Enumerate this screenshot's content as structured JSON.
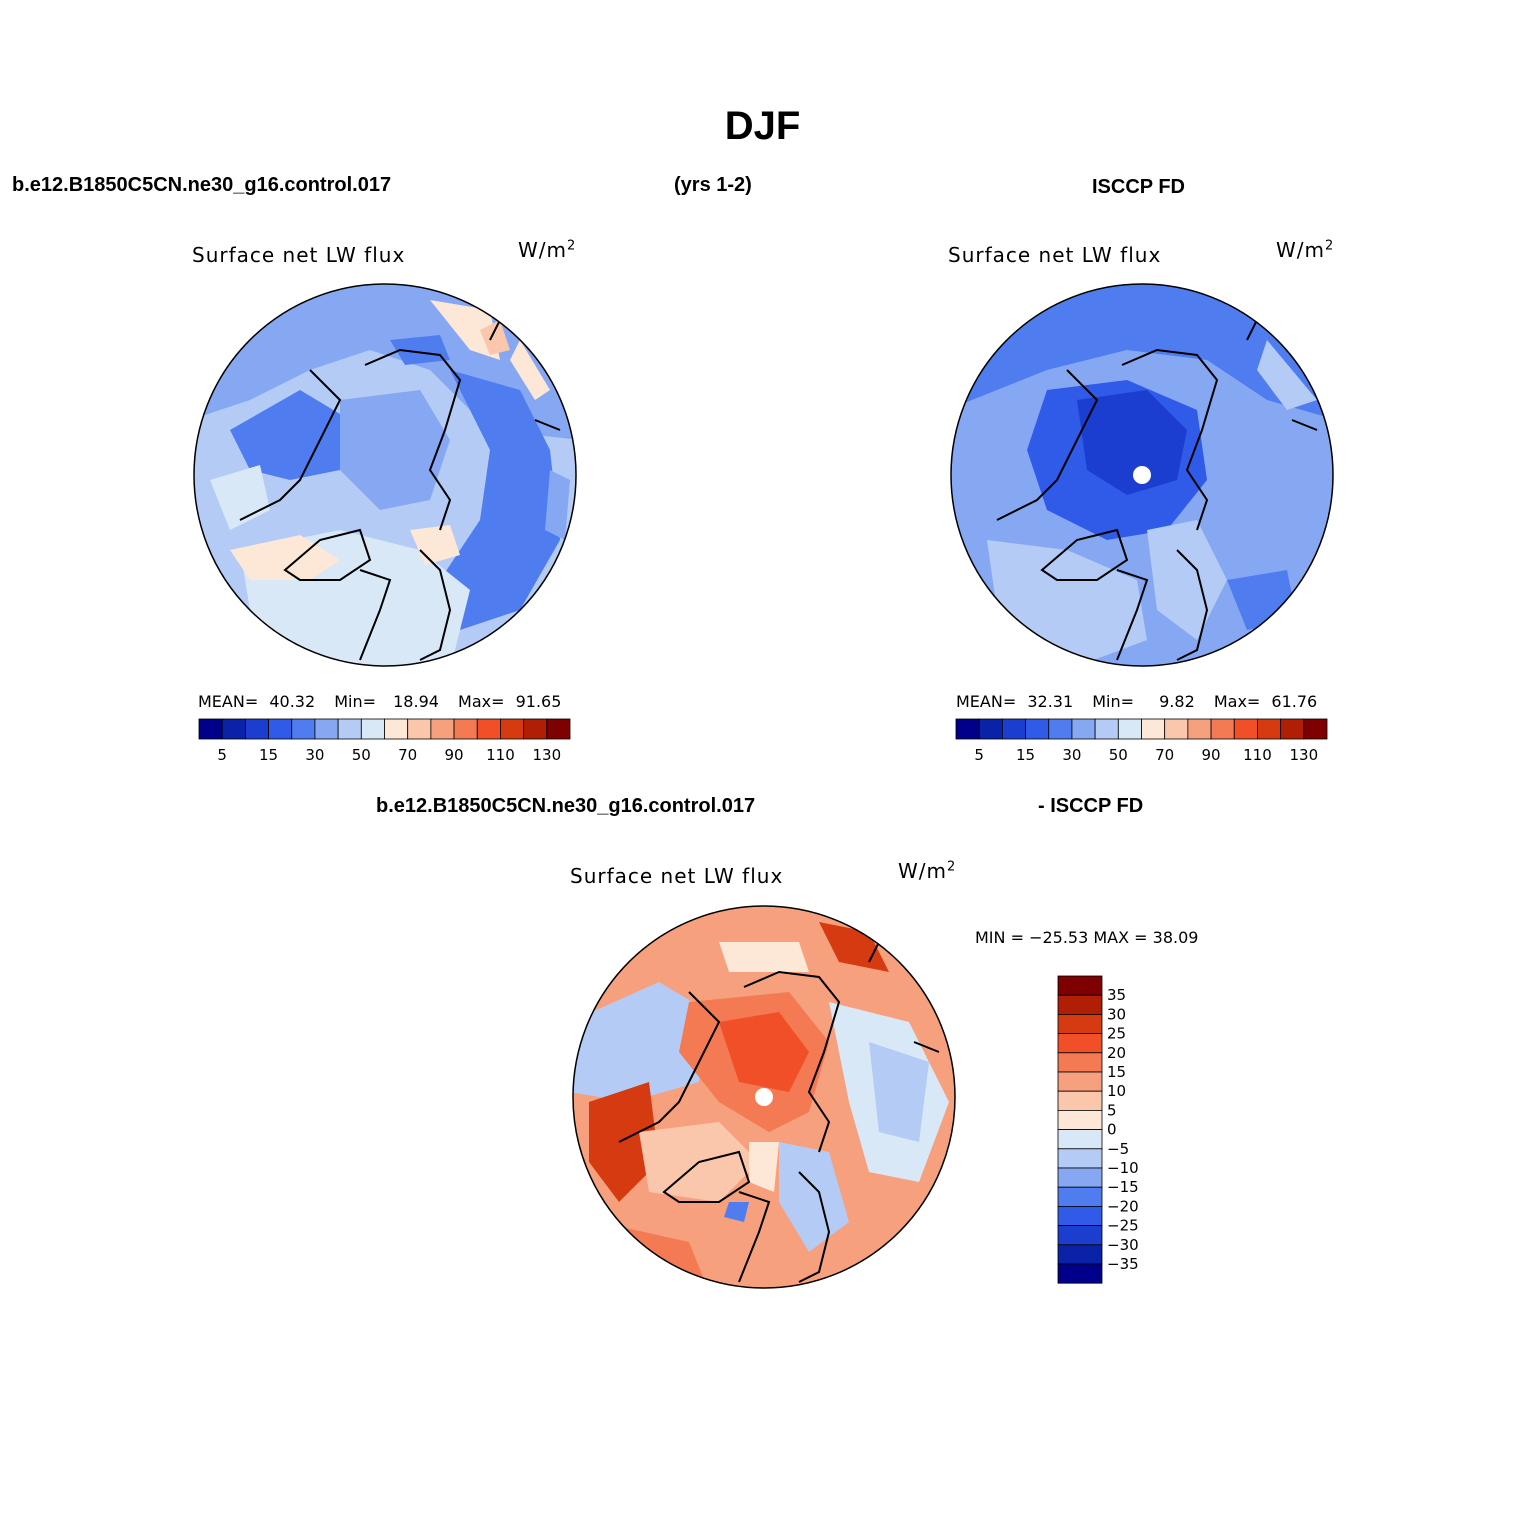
{
  "title": "DJF",
  "headers": {
    "case_name": "b.e12.B1850C5CN.ne30_g16.control.017",
    "years": "(yrs 1-2)",
    "obs_name": "ISCCP FD",
    "diff_case": "b.e12.B1850C5CN.ne30_g16.control.017",
    "diff_obs": "- ISCCP FD"
  },
  "panels": [
    {
      "title": "Surface net LW flux",
      "units": "W/m",
      "units_sup": "2",
      "mean_label": "MEAN=",
      "mean": "40.32",
      "min_label": "Min=",
      "min": "18.94",
      "max_label": "Max=",
      "max": "91.65"
    },
    {
      "title": "Surface net LW flux",
      "units": "W/m",
      "units_sup": "2",
      "mean_label": "MEAN=",
      "mean": "32.31",
      "min_label": "Min=",
      "min": "9.82",
      "max_label": "Max=",
      "max": "61.76"
    },
    {
      "title": "Surface net LW flux",
      "units": "W/m",
      "units_sup": "2",
      "minmax": "MIN = −25.53 MAX =   38.09"
    }
  ],
  "colorbar_abs": {
    "colors": [
      "#00008b",
      "#0a22a8",
      "#1c3ed0",
      "#2f5be8",
      "#4f7df0",
      "#86a8f2",
      "#b3cbf5",
      "#d9e8f7",
      "#fde7d6",
      "#fac6ac",
      "#f6a07e",
      "#f37a52",
      "#f04f27",
      "#d63a10",
      "#b01f05",
      "#7f0000"
    ],
    "labels": [
      "5",
      "15",
      "30",
      "50",
      "70",
      "90",
      "110",
      "130"
    ]
  },
  "colorbar_diff": {
    "colors": [
      "#00008b",
      "#0a22a8",
      "#1c3ed0",
      "#2f5be8",
      "#4f7df0",
      "#86a8f2",
      "#b3cbf5",
      "#d9e8f7",
      "#fde7d6",
      "#fac6ac",
      "#f6a07e",
      "#f37a52",
      "#f04f27",
      "#d63a10",
      "#b01f05",
      "#7f0000"
    ],
    "labels": [
      "35",
      "30",
      "25",
      "20",
      "15",
      "10",
      "5",
      "0",
      "−5",
      "−10",
      "−15",
      "−20",
      "−25",
      "−30",
      "−35"
    ]
  }
}
